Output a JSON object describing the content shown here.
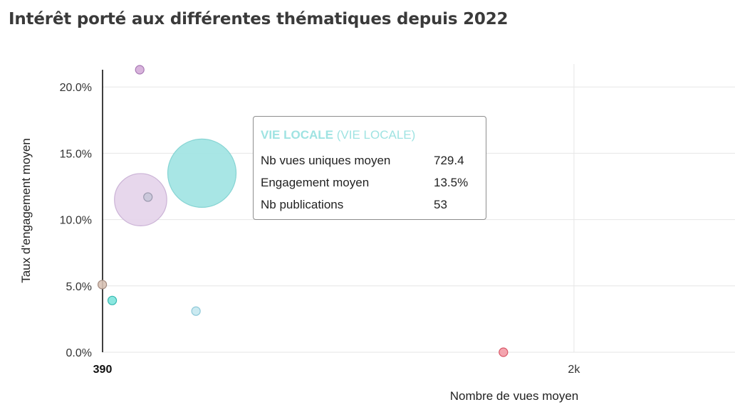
{
  "title": "Intérêt porté aux différentes thématiques depuis 2022",
  "colors": {
    "grid": "#e6e6e6",
    "axis": "#000000",
    "tooltip_accent": "#9fe3e2"
  },
  "chart_data": {
    "type": "scatter",
    "title": "Intérêt porté aux différentes thématiques depuis 2022",
    "xlabel": "Nombre de vues moyen",
    "ylabel": "Taux d'engagement moyen",
    "xlim": [
      390,
      2550
    ],
    "ylim": [
      0,
      21.3
    ],
    "x_ticks": [
      {
        "value": 390,
        "label": "390"
      },
      {
        "value": 2000,
        "label": "2k"
      }
    ],
    "y_ticks": [
      {
        "value": 0,
        "label": "0.0%"
      },
      {
        "value": 5,
        "label": "5.0%"
      },
      {
        "value": 10,
        "label": "10.0%"
      },
      {
        "value": 15,
        "label": "15.0%"
      },
      {
        "value": 20,
        "label": "20.0%"
      }
    ],
    "grid": true,
    "bubble_size_field": "Nb publications",
    "points": [
      {
        "x": 520,
        "y": 11.5,
        "size": 48,
        "color": "#e4d3ea",
        "stroke": "#cbb3d6"
      },
      {
        "x": 729.4,
        "y": 13.5,
        "size": 53,
        "color": "#9fe3e2",
        "stroke": "#86d4d3"
      },
      {
        "x": 545,
        "y": 11.7,
        "size": 14,
        "color": "#c8c7d9",
        "stroke": "#9a98ad"
      },
      {
        "x": 517,
        "y": 21.3,
        "size": 7,
        "color": "#d4acd8",
        "stroke": "#a878b4"
      },
      {
        "x": 389,
        "y": 5.1,
        "size": 7,
        "color": "#d8c2b5",
        "stroke": "#a38b80"
      },
      {
        "x": 423,
        "y": 3.9,
        "size": 7,
        "color": "#7ee4dd",
        "stroke": "#36b9b1"
      },
      {
        "x": 709,
        "y": 3.1,
        "size": 12,
        "color": "#c5e8f0",
        "stroke": "#8ec8d8"
      },
      {
        "x": 1759,
        "y": 0.0,
        "size": 7,
        "color": "#f39ba6",
        "stroke": "#d85566"
      }
    ]
  },
  "tooltip": {
    "heading_bold": "VIE LOCALE",
    "heading_light": "(VIE LOCALE)",
    "rows": [
      {
        "label": "Nb vues uniques moyen",
        "value": "729.4"
      },
      {
        "label": "Engagement moyen",
        "value": "13.5%"
      },
      {
        "label": "Nb publications",
        "value": "53"
      }
    ]
  }
}
